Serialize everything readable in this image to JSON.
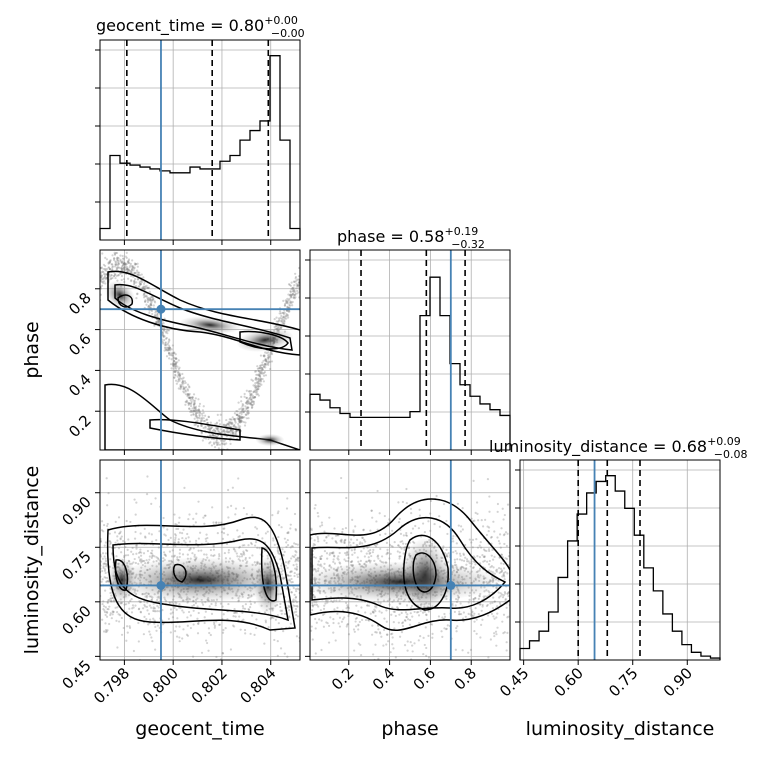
{
  "chart_data": {
    "type": "corner",
    "parameters": [
      "geocent_time",
      "phase",
      "luminosity_distance"
    ],
    "truth": {
      "geocent_time": 0.7995,
      "phase": 0.7,
      "luminosity_distance": 0.645
    },
    "colors": {
      "truth": "#4682b4",
      "hist": "#000000",
      "grid": "#b0b0b0",
      "points": "#808080"
    },
    "grid": true,
    "panels": {
      "geocent_time": {
        "title": {
          "prefix": "geocent_time = ",
          "value": "0.80",
          "plus": "+0.00",
          "minus": "−0.00"
        },
        "range": [
          0.797,
          0.8052
        ],
        "ticks": [
          0.798,
          0.8,
          0.802,
          0.804
        ],
        "tick_labels": [
          "0.798",
          "0.800",
          "0.802",
          "0.804"
        ],
        "quantiles": [
          0.7981,
          0.8016,
          0.8039
        ],
        "hist_counts": [
          0.06,
          0.44,
          0.4,
          0.39,
          0.38,
          0.37,
          0.36,
          0.35,
          0.35,
          0.38,
          0.37,
          0.37,
          0.41,
          0.44,
          0.52,
          0.57,
          0.62,
          0.96,
          0.52,
          0.06
        ]
      },
      "phase": {
        "title": {
          "prefix": "phase = ",
          "value": "0.58",
          "plus": "+0.19",
          "minus": "−0.32"
        },
        "range": [
          0.01,
          0.99
        ],
        "ticks": [
          0.2,
          0.4,
          0.6,
          0.8
        ],
        "tick_labels": [
          "0.2",
          "0.4",
          "0.6",
          "0.8"
        ],
        "quantiles": [
          0.26,
          0.58,
          0.77
        ],
        "hist_counts": [
          0.29,
          0.26,
          0.22,
          0.19,
          0.17,
          0.17,
          0.17,
          0.17,
          0.17,
          0.17,
          0.2,
          0.7,
          0.9,
          0.7,
          0.45,
          0.34,
          0.28,
          0.24,
          0.21,
          0.18
        ]
      },
      "luminosity_distance": {
        "title": {
          "prefix": "luminosity_distance = ",
          "value": "0.68",
          "plus": "+0.09",
          "minus": "−0.08"
        },
        "range": [
          0.44,
          0.99
        ],
        "ticks": [
          0.45,
          0.6,
          0.75,
          0.9
        ],
        "tick_labels": [
          "0.45",
          "0.60",
          "0.75",
          "0.90"
        ],
        "quantiles": [
          0.6,
          0.68,
          0.77
        ],
        "hist_counts": [
          0.06,
          0.1,
          0.15,
          0.25,
          0.43,
          0.62,
          0.76,
          0.87,
          0.93,
          0.96,
          0.88,
          0.79,
          0.65,
          0.48,
          0.36,
          0.24,
          0.15,
          0.08,
          0.04,
          0.02,
          0.01
        ]
      }
    },
    "axis_labels": {
      "x": [
        "geocent_time",
        "phase",
        "luminosity_distance"
      ],
      "y": [
        "phase",
        "luminosity_distance"
      ]
    }
  }
}
